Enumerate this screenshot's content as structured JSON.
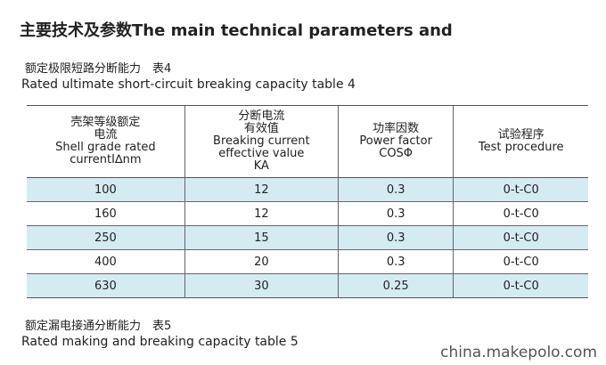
{
  "header": {
    "title": "主要技术及参数The main technical parameters and"
  },
  "table4": {
    "caption_cn": "额定极限短路分断能力　表4",
    "caption_en": "Rated ultimate short-circuit breaking capacity table 4",
    "columns": [
      [
        "壳架等级额定",
        "电流",
        "Shell grade rated",
        "currentI∆nm"
      ],
      [
        "分断电流",
        "有效值",
        "Breaking current",
        "effective value",
        "KA"
      ],
      [
        "功率因数",
        "Power factor",
        "COSΦ"
      ],
      [
        "试验程序",
        "Test procedure"
      ]
    ],
    "rows": [
      [
        "100",
        "12",
        "0.3",
        "0-t-C0"
      ],
      [
        "160",
        "12",
        "0.3",
        "0-t-C0"
      ],
      [
        "250",
        "15",
        "0.3",
        "0-t-C0"
      ],
      [
        "400",
        "20",
        "0.3",
        "0-t-C0"
      ],
      [
        "630",
        "30",
        "0.25",
        "0-t-C0"
      ]
    ]
  },
  "table5": {
    "caption_cn": "额定漏电接通分断能力　表5",
    "caption_en": "Rated making and breaking capacity table 5"
  },
  "watermark": "china.makepolo.com"
}
